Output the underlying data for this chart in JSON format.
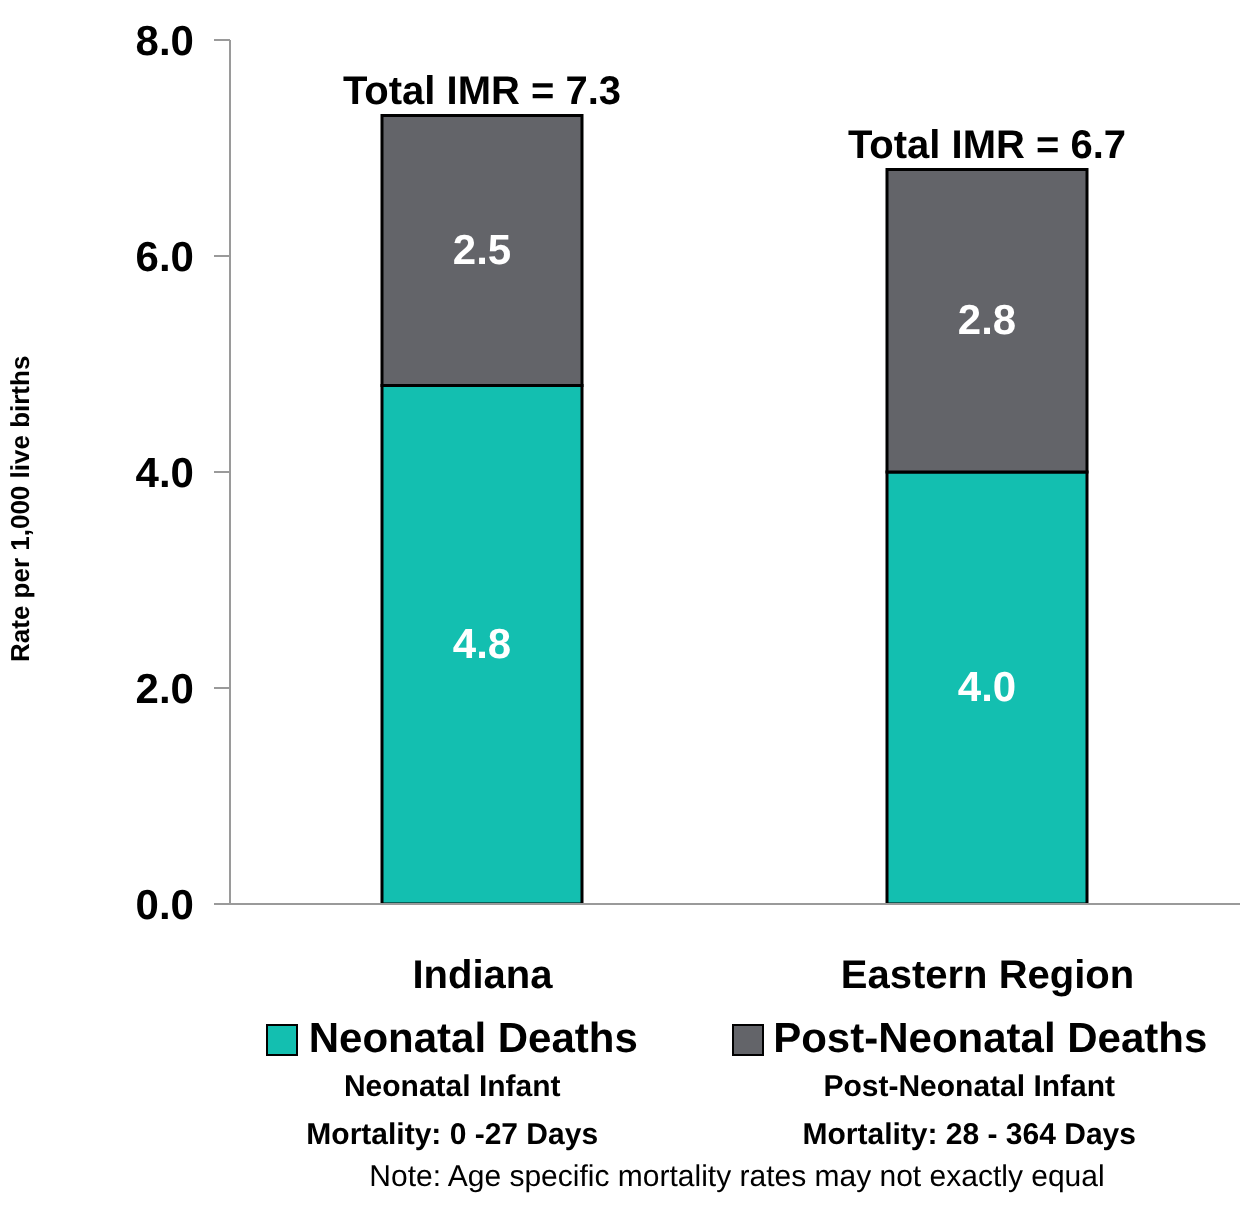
{
  "chart_data": {
    "type": "bar",
    "stacked": true,
    "ylabel": "Rate per 1,000 live births",
    "categories": [
      "Indiana",
      "Eastern Region"
    ],
    "series": [
      {
        "name": "Neonatal Deaths",
        "color": "#13bfb0",
        "values": [
          4.8,
          4.0
        ],
        "value_labels": [
          "4.8",
          "4.0"
        ]
      },
      {
        "name": "Post-Neonatal Deaths",
        "color": "#636469",
        "values": [
          2.5,
          2.8
        ],
        "value_labels": [
          "2.5",
          "2.8"
        ]
      }
    ],
    "ylim": [
      0,
      8
    ],
    "yticks": [
      {
        "value": 0,
        "label": "0.0"
      },
      {
        "value": 2,
        "label": "2.0"
      },
      {
        "value": 4,
        "label": "4.0"
      },
      {
        "value": 6,
        "label": "6.0"
      },
      {
        "value": 8,
        "label": "8.0"
      }
    ],
    "totals": [
      "Total IMR = 7.3",
      "Total IMR = 6.7"
    ],
    "legend": "bottom",
    "grid": false,
    "annotations": [
      "Neonatal Infant Mortality: 0 -27 Days",
      "Post-Neonatal Infant Mortality: 28 - 364 Days",
      "Note: Age specific mortality rates may not exactly equal"
    ]
  }
}
